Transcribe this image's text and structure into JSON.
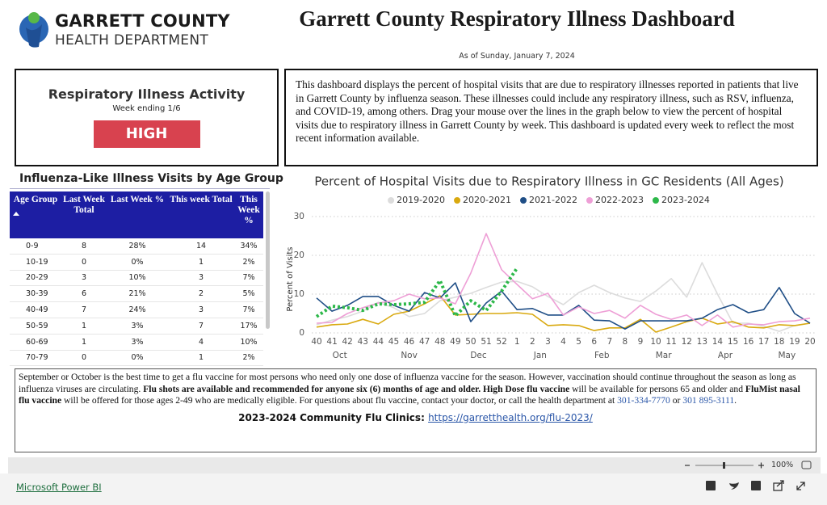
{
  "header": {
    "logo_line1": "GARRETT COUNTY",
    "logo_line2": "HEALTH DEPARTMENT",
    "title": "Garrett County Respiratory Illness Dashboard",
    "as_of": "As of Sunday, January 7, 2024"
  },
  "activity": {
    "title": "Respiratory Illness Activity",
    "week": "Week ending 1/6",
    "level": "HIGH"
  },
  "description": "This dashboard displays the percent of hospital visits that are due to respiratory illnesses reported in patients that live in Garrett County by influenza season. These illnesses could include any respiratory illness, such as RSV, influenza, and COVID-19, among others.  Drag your mouse over the lines in the graph below to view the percent of hospital visits due to respiratory illness in Garrett County by week. This dashboard is updated every week to reflect the most recent information available.",
  "table": {
    "title": "Influenza-Like Illness Visits by Age Group",
    "columns": [
      "Age Group",
      "Last Week Total",
      "Last Week %",
      "This week Total",
      "This Week %"
    ],
    "rows": [
      [
        "0-9",
        "8",
        "28%",
        "14",
        "34%"
      ],
      [
        "10-19",
        "0",
        "0%",
        "1",
        "2%"
      ],
      [
        "20-29",
        "3",
        "10%",
        "3",
        "7%"
      ],
      [
        "30-39",
        "6",
        "21%",
        "2",
        "5%"
      ],
      [
        "40-49",
        "7",
        "24%",
        "3",
        "7%"
      ],
      [
        "50-59",
        "1",
        "3%",
        "7",
        "17%"
      ],
      [
        "60-69",
        "1",
        "3%",
        "4",
        "10%"
      ],
      [
        "70-79",
        "0",
        "0%",
        "1",
        "2%"
      ]
    ]
  },
  "chart_data": {
    "type": "line",
    "title": "Percent of Hospital Visits due to Respiratory Illness in GC Residents (All Ages)",
    "y_label": "Percent of Visits",
    "categories": [
      "40",
      "41",
      "42",
      "43",
      "44",
      "45",
      "46",
      "47",
      "48",
      "49",
      "50",
      "51",
      "52",
      "1",
      "2",
      "3",
      "4",
      "5",
      "6",
      "7",
      "8",
      "9",
      "10",
      "11",
      "12",
      "13",
      "14",
      "15",
      "16",
      "17",
      "18",
      "19",
      "20"
    ],
    "x_groups": [
      {
        "label": "Oct",
        "count": 4
      },
      {
        "label": "Nov",
        "count": 5
      },
      {
        "label": "Dec",
        "count": 4
      },
      {
        "label": "Jan",
        "count": 4
      },
      {
        "label": "Feb",
        "count": 4
      },
      {
        "label": "Mar",
        "count": 4
      },
      {
        "label": "Apr",
        "count": 4
      },
      {
        "label": "May",
        "count": 4
      }
    ],
    "ylim": [
      0,
      31
    ],
    "yticks": [
      0,
      10,
      20,
      30
    ],
    "grid": true,
    "legend": "top",
    "series": [
      {
        "name": "2019-2020",
        "color": "#dcdcdc",
        "line_style": "solid",
        "values": [
          2.1,
          3.3,
          4.2,
          5.6,
          7.9,
          6.5,
          4.2,
          5,
          8.3,
          9.2,
          10.2,
          11.7,
          13.1,
          13.3,
          11.9,
          9.4,
          7.3,
          10.4,
          12.3,
          10.4,
          9,
          8.1,
          10.8,
          14,
          9.2,
          18.1,
          10,
          2.5,
          2.5,
          1.7,
          0.4,
          1.9,
          2.5
        ]
      },
      {
        "name": "2020-2021",
        "color": "#d9a90f",
        "line_style": "solid",
        "values": [
          1.5,
          2.1,
          2.3,
          3.5,
          2.3,
          4.8,
          5.6,
          7.5,
          9.6,
          4.6,
          4.8,
          5,
          5,
          5.2,
          4.8,
          1.9,
          2.1,
          1.9,
          0.6,
          1.3,
          1.3,
          3.5,
          0.2,
          1.5,
          2.9,
          3.8,
          2.3,
          2.9,
          1.5,
          1.3,
          2.1,
          1.9,
          2.5
        ]
      },
      {
        "name": "2021-2022",
        "color": "#1f4e86",
        "line_style": "solid",
        "values": [
          9,
          5.6,
          7.1,
          9.4,
          9.4,
          7.1,
          5.6,
          10.4,
          9,
          12.9,
          2.9,
          7.7,
          10.8,
          6,
          6.3,
          4.6,
          4.6,
          7.1,
          3.3,
          3.1,
          1,
          3.1,
          3.1,
          3.1,
          3.1,
          3.8,
          6,
          7.3,
          5.2,
          6,
          11.7,
          5,
          2.5
        ]
      },
      {
        "name": "2022-2023",
        "color": "#ee9fd6",
        "line_style": "solid",
        "values": [
          2.5,
          2.7,
          5,
          6.5,
          7.7,
          8.3,
          10,
          8.8,
          9,
          7.5,
          15.4,
          25.6,
          16.3,
          12.5,
          8.8,
          10.2,
          4.6,
          6.7,
          5,
          5.8,
          3.8,
          7.1,
          4.8,
          3.5,
          4.6,
          1.9,
          4.6,
          1.5,
          2.3,
          2.1,
          2.9,
          3.1,
          3.8
        ]
      },
      {
        "name": "2023-2024",
        "color": "#2db84a",
        "line_style": "dotted",
        "values": [
          4.2,
          6.9,
          6.5,
          5.8,
          7.5,
          7.3,
          7.5,
          7.9,
          13.5,
          4.4,
          8.3,
          5.8,
          10.8,
          16.7,
          null,
          null,
          null,
          null,
          null,
          null,
          null,
          null,
          null,
          null,
          null,
          null,
          null,
          null,
          null,
          null,
          null,
          null,
          null
        ]
      }
    ]
  },
  "note": {
    "segments": [
      {
        "text": "September or October is the best time to get a flu vaccine for most persons who need only one dose of influenza vaccine for the season. However, vaccination should continue throughout the season as long as influenza viruses are circulating. ",
        "style": "normal"
      },
      {
        "text": "Flu shots are available and recommended for anyone six (6) months of age and older. High Dose flu vaccine",
        "style": "bold"
      },
      {
        "text": " will be available for persons 65 and older and ",
        "style": "normal"
      },
      {
        "text": "FluMist nasal flu vaccine",
        "style": "bold"
      },
      {
        "text": " will be offered for those ages 2-49 who are medically eligible. For questions about flu vaccine, contact your doctor, or call the health department at ",
        "style": "normal"
      },
      {
        "text": "301-334-7770",
        "style": "link"
      },
      {
        "text": " or ",
        "style": "normal"
      },
      {
        "text": "301 895-3111",
        "style": "link"
      },
      {
        "text": ".",
        "style": "normal"
      }
    ],
    "clinics_label": "2023-2024 Community Flu Clinics:",
    "clinics_link": "https://garretthealth.org/flu-2023/"
  },
  "toolbar": {
    "zoom": "100%"
  },
  "footer": {
    "brand": "Microsoft Power BI"
  }
}
